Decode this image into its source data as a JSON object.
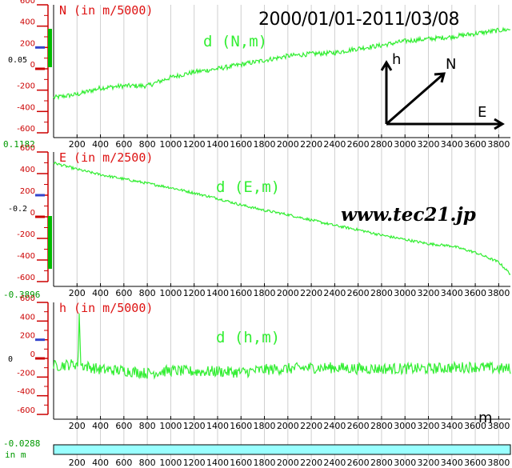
{
  "date_range": "2000/01/01-2011/03/08",
  "watermark": "www.tec21.jp",
  "unit_label": "m",
  "axis_x_ticks": [
    200,
    400,
    600,
    800,
    1000,
    1200,
    1400,
    1600,
    1800,
    2000,
    2200,
    2400,
    2600,
    2800,
    3000,
    3200,
    3400,
    3600,
    3800
  ],
  "axis_y_ticks": [
    600,
    400,
    200,
    0,
    -200,
    -400,
    -600
  ],
  "compass": {
    "up": "h",
    "diag": "N",
    "right": "E"
  },
  "colors": {
    "data": "#33ee33",
    "ticks": "#cc0000",
    "marker": "#3344cc",
    "bar": "#00bb00",
    "readout": "#009900",
    "scalebar": "#99ffff"
  },
  "chart_data": [
    {
      "type": "line",
      "panel_label": "N (in m/5000)",
      "series_label": "d (N,m)",
      "gauge_value": "0.05",
      "top_readout": "0.1182",
      "xlim": [
        0,
        3900
      ],
      "ylim": [
        -600,
        600
      ],
      "x": [
        0,
        200,
        400,
        600,
        800,
        1000,
        1200,
        1400,
        1600,
        1800,
        2000,
        2200,
        2400,
        2600,
        2800,
        3000,
        3200,
        3400,
        3600,
        3800,
        3900
      ],
      "values": [
        -270,
        -240,
        -180,
        -160,
        -160,
        -80,
        -30,
        0,
        40,
        80,
        120,
        140,
        150,
        190,
        220,
        260,
        280,
        300,
        330,
        360,
        370
      ],
      "noise": 22
    },
    {
      "type": "line",
      "panel_label": "E (in m/2500)",
      "series_label": "d (E,m)",
      "gauge_value": "-0.2",
      "top_readout": "-0.3896",
      "xlim": [
        0,
        3900
      ],
      "ylim": [
        -600,
        600
      ],
      "x": [
        0,
        200,
        400,
        600,
        800,
        1000,
        1200,
        1400,
        1600,
        1800,
        2000,
        2200,
        2400,
        2600,
        2800,
        3000,
        3200,
        3400,
        3600,
        3800,
        3900
      ],
      "values": [
        500,
        440,
        390,
        350,
        310,
        270,
        220,
        170,
        110,
        60,
        20,
        -30,
        -80,
        -120,
        -170,
        -210,
        -250,
        -270,
        -330,
        -420,
        -530
      ],
      "noise": 12
    },
    {
      "type": "line",
      "panel_label": "h (in m/5000)",
      "series_label": "d (h,m)",
      "gauge_value": "0",
      "top_readout": "-0.0288",
      "xlim": [
        0,
        3900
      ],
      "ylim": [
        -600,
        600
      ],
      "x": [
        0,
        200,
        400,
        600,
        800,
        1000,
        1200,
        1400,
        1600,
        1800,
        2000,
        2200,
        2400,
        2600,
        2800,
        3000,
        3200,
        3400,
        3600,
        3800,
        3900
      ],
      "values": [
        -80,
        -60,
        -120,
        -130,
        -160,
        -130,
        -140,
        -140,
        -150,
        -120,
        -110,
        -100,
        -100,
        -110,
        -110,
        -110,
        -110,
        -100,
        -90,
        -110,
        -110
      ],
      "noise": 60,
      "spike": {
        "x": 220,
        "value": 580
      }
    }
  ]
}
